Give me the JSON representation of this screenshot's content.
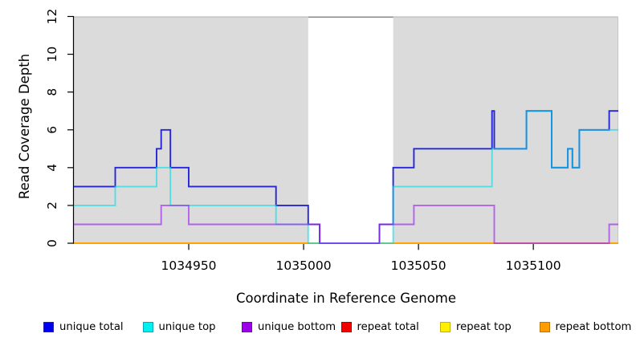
{
  "chart_data": {
    "type": "line",
    "subtype": "step-coverage",
    "title": "",
    "xlabel": "Coordinate in Reference Genome",
    "ylabel": "Read Coverage Depth",
    "xlim": [
      1034900,
      1035137
    ],
    "ylim": [
      0,
      12
    ],
    "x_ticks": [
      1034950,
      1035000,
      1035050,
      1035100
    ],
    "y_ticks": [
      0,
      2,
      4,
      6,
      8,
      10,
      12
    ],
    "grid": false,
    "panel_color": "#dbdbdb",
    "panel_edge_color": "#b2b2b2",
    "highlight_band": {
      "x0": 1035002,
      "x1": 1035039,
      "color": "#ffffff",
      "top_edge_color": "#8c8c8c"
    },
    "series": [
      {
        "name": "repeat total",
        "color": "#e80000",
        "opacity": 1,
        "steps": [
          [
            1034900,
            0
          ]
        ],
        "x_end": 1035137
      },
      {
        "name": "repeat top",
        "color": "#ffff00",
        "opacity": 0.85,
        "steps": [
          [
            1034900,
            0
          ]
        ],
        "x_end": 1035137
      },
      {
        "name": "repeat bottom",
        "color": "#ff9c00",
        "opacity": 0.9,
        "steps": [
          [
            1034900,
            0
          ]
        ],
        "x_end": 1035137
      },
      {
        "name": "unique total",
        "color": "#2626d8",
        "opacity": 1,
        "steps": [
          [
            1034900,
            3
          ],
          [
            1034918,
            4
          ],
          [
            1034936,
            5
          ],
          [
            1034938,
            6
          ],
          [
            1034942,
            4
          ],
          [
            1034950,
            3
          ],
          [
            1034988,
            2
          ],
          [
            1035002,
            1
          ],
          [
            1035007,
            0
          ],
          [
            1035033,
            1
          ],
          [
            1035039,
            4
          ],
          [
            1035048,
            5
          ],
          [
            1035082,
            7
          ],
          [
            1035083,
            5
          ],
          [
            1035097,
            7
          ],
          [
            1035108,
            4
          ],
          [
            1035115,
            5
          ],
          [
            1035117,
            4
          ],
          [
            1035120,
            6
          ],
          [
            1035133,
            7
          ]
        ],
        "x_end": 1035137
      },
      {
        "name": "unique top",
        "color": "#00dfe8",
        "opacity": 0.62,
        "steps": [
          [
            1034900,
            2
          ],
          [
            1034918,
            3
          ],
          [
            1034936,
            4
          ],
          [
            1034942,
            2
          ],
          [
            1034988,
            1
          ],
          [
            1035002,
            0
          ],
          [
            1035039,
            3
          ],
          [
            1035082,
            5
          ],
          [
            1035097,
            7
          ],
          [
            1035108,
            4
          ],
          [
            1035115,
            5
          ],
          [
            1035117,
            4
          ],
          [
            1035120,
            6
          ]
        ],
        "x_end": 1035137
      },
      {
        "name": "unique bottom",
        "color": "#a128f0",
        "opacity": 0.68,
        "steps": [
          [
            1034900,
            1
          ],
          [
            1034938,
            2
          ],
          [
            1034950,
            1
          ],
          [
            1035007,
            0
          ],
          [
            1035033,
            1
          ],
          [
            1035048,
            2
          ],
          [
            1035083,
            0
          ],
          [
            1035133,
            1
          ]
        ],
        "x_end": 1035137
      }
    ],
    "legend_position": "bottom"
  },
  "legend": {
    "items": [
      {
        "label": "unique total",
        "fill": "#0000f0",
        "border": "#2222b0"
      },
      {
        "label": "unique top",
        "fill": "#00f0f0",
        "border": "#00a8c0"
      },
      {
        "label": "unique bottom",
        "fill": "#9c00e8",
        "border": "#7a00b8"
      },
      {
        "label": "repeat total",
        "fill": "#f00000",
        "border": "#b00000"
      },
      {
        "label": "repeat top",
        "fill": "#fff000",
        "border": "#c0b400"
      },
      {
        "label": "repeat bottom",
        "fill": "#ff9c00",
        "border": "#c07400"
      }
    ]
  }
}
